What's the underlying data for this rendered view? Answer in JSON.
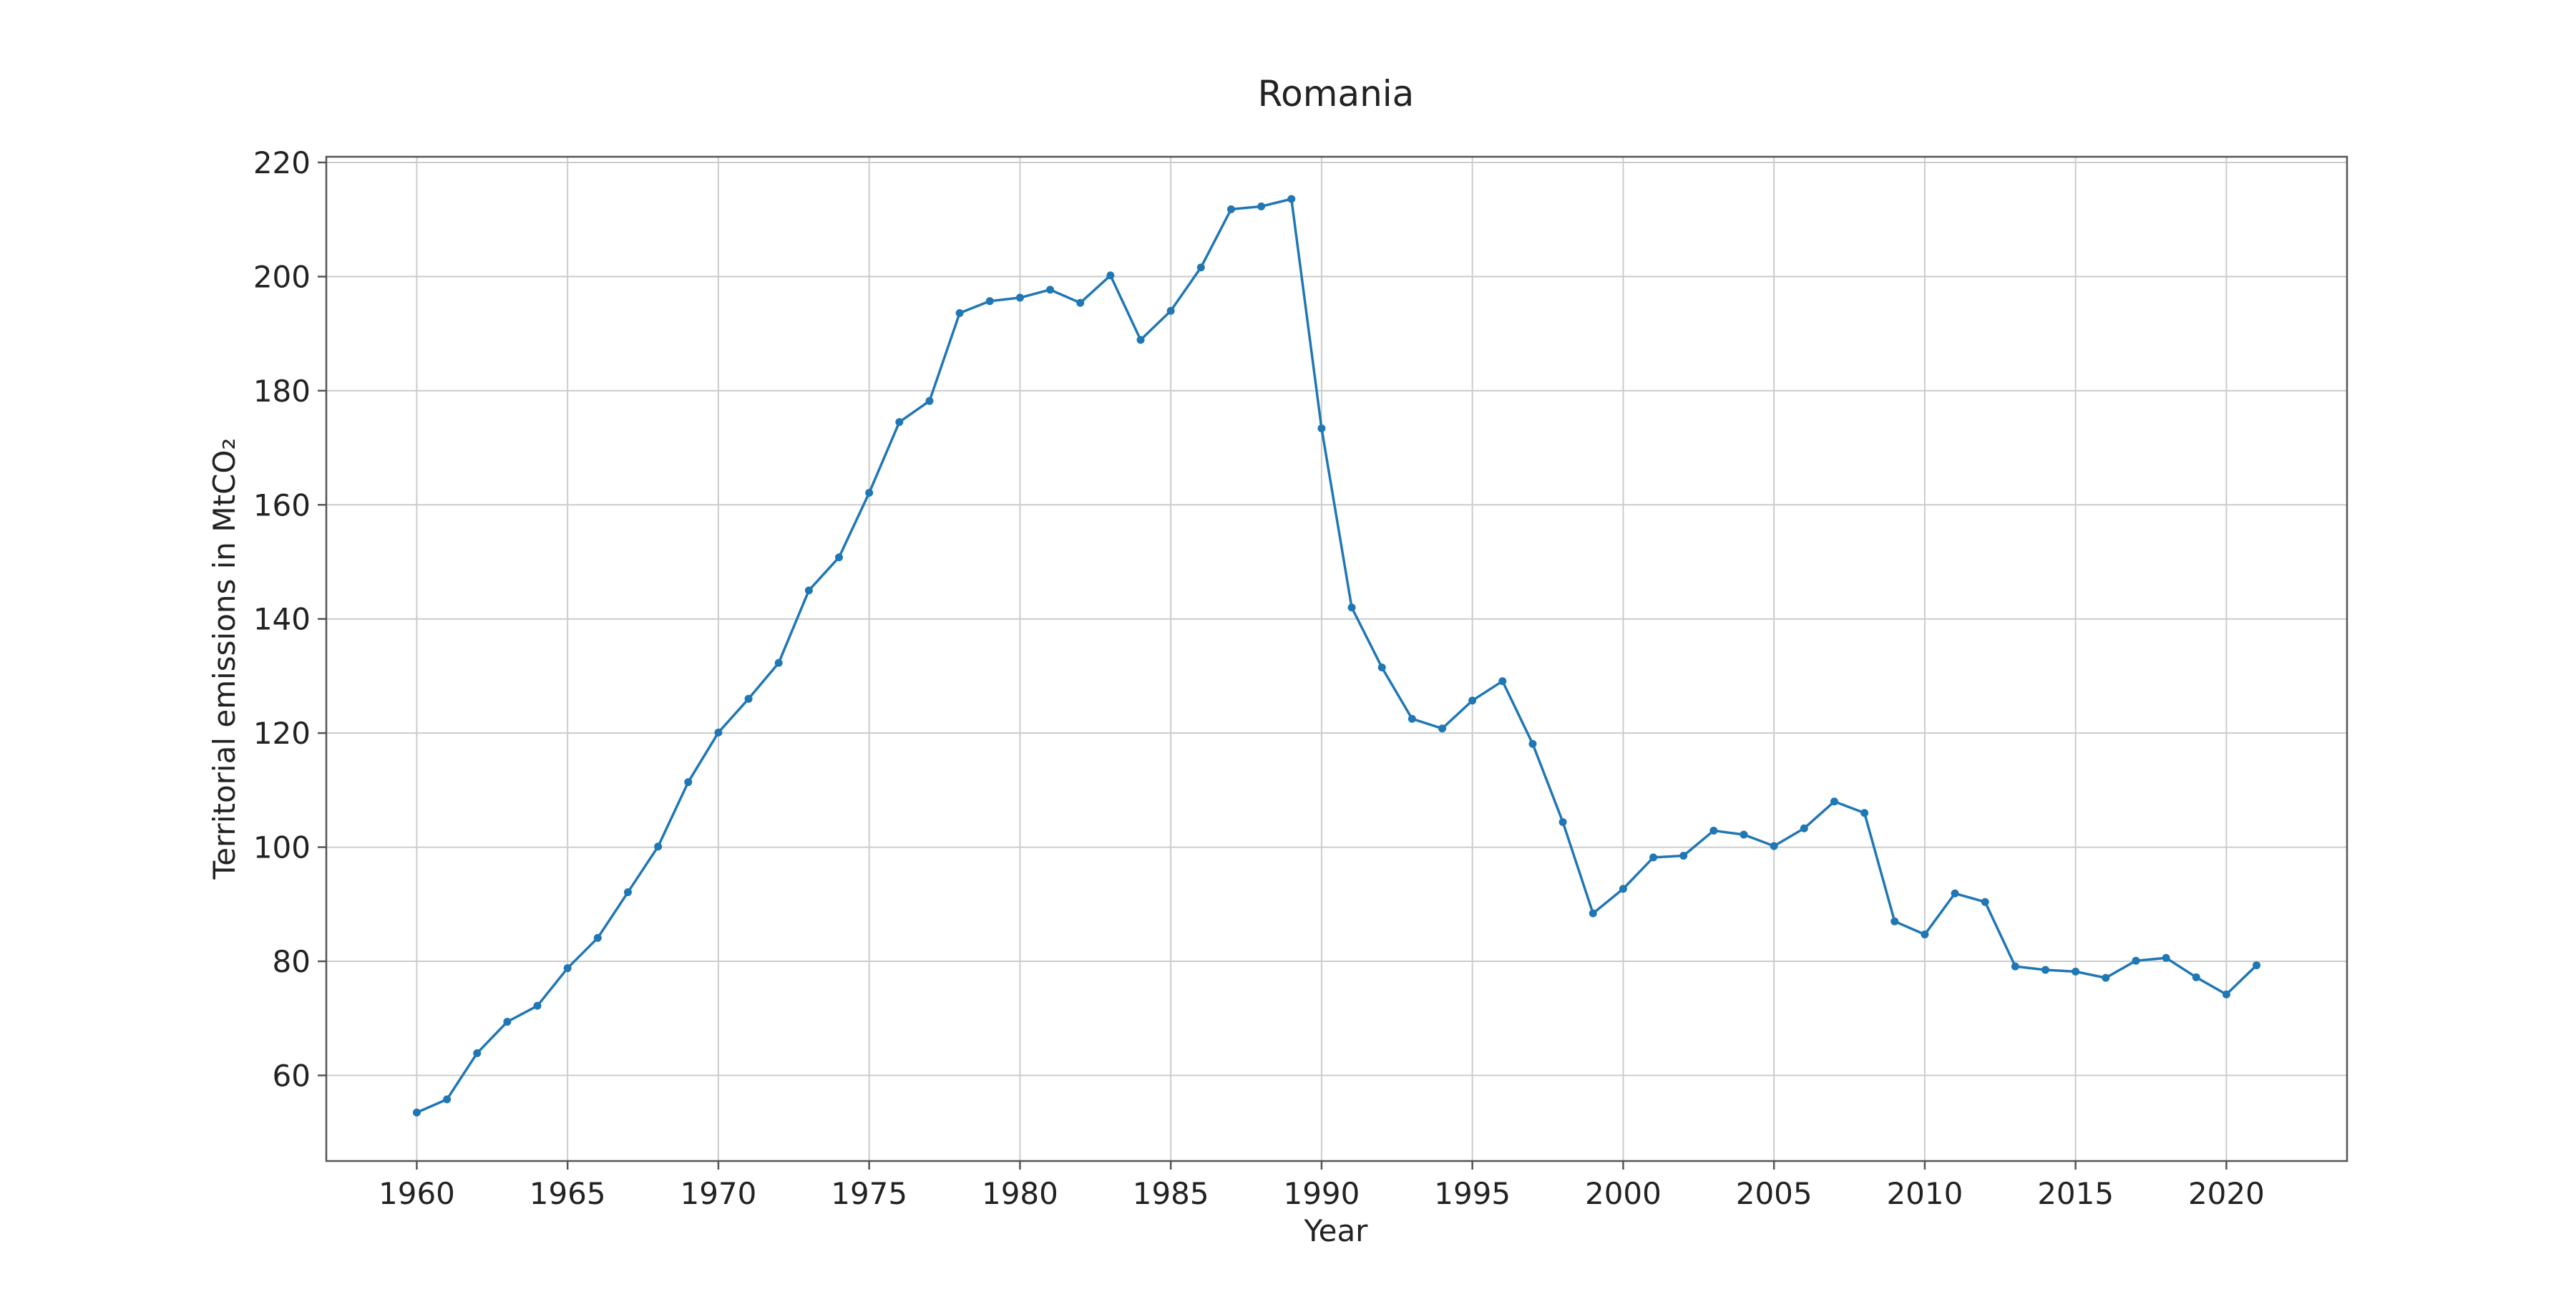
{
  "chart_data": {
    "type": "line",
    "title": "Romania",
    "xlabel": "Year",
    "ylabel": "Territorial emissions in MtCO₂",
    "xlim": [
      1957,
      2024
    ],
    "ylim": [
      45,
      221
    ],
    "xticks": [
      1960,
      1965,
      1970,
      1975,
      1980,
      1985,
      1990,
      1995,
      2000,
      2005,
      2010,
      2015,
      2020
    ],
    "yticks": [
      60,
      80,
      100,
      120,
      140,
      160,
      180,
      200,
      220
    ],
    "grid": true,
    "legend": "none",
    "series_color": "#1f77b4",
    "x": [
      1960,
      1961,
      1962,
      1963,
      1964,
      1965,
      1966,
      1967,
      1968,
      1969,
      1970,
      1971,
      1972,
      1973,
      1974,
      1975,
      1976,
      1977,
      1978,
      1979,
      1980,
      1981,
      1982,
      1983,
      1984,
      1985,
      1986,
      1987,
      1988,
      1989,
      1990,
      1991,
      1992,
      1993,
      1994,
      1995,
      1996,
      1997,
      1998,
      1999,
      2000,
      2001,
      2002,
      2003,
      2004,
      2005,
      2006,
      2007,
      2008,
      2009,
      2010,
      2011,
      2012,
      2013,
      2014,
      2015,
      2016,
      2017,
      2018,
      2019,
      2020,
      2021
    ],
    "series": [
      {
        "values": [
          53.5,
          55.8,
          63.9,
          69.4,
          72.2,
          78.8,
          84.1,
          92.1,
          100.1,
          111.4,
          120.1,
          126.0,
          132.3,
          145.0,
          150.8,
          162.1,
          174.5,
          178.2,
          193.6,
          195.7,
          196.3,
          197.7,
          195.4,
          200.2,
          188.9,
          194.0,
          201.6,
          211.8,
          212.3,
          213.6,
          173.4,
          142.0,
          131.5,
          122.5,
          120.8,
          125.7,
          129.1,
          118.1,
          104.4,
          88.4,
          92.7,
          98.2,
          98.5,
          102.9,
          102.2,
          100.2,
          103.3,
          108.0,
          106.0,
          87.0,
          84.7,
          91.9,
          90.4,
          79.1,
          78.5,
          78.2,
          77.1,
          80.1,
          80.6,
          77.2,
          74.2,
          79.3
        ]
      }
    ]
  }
}
